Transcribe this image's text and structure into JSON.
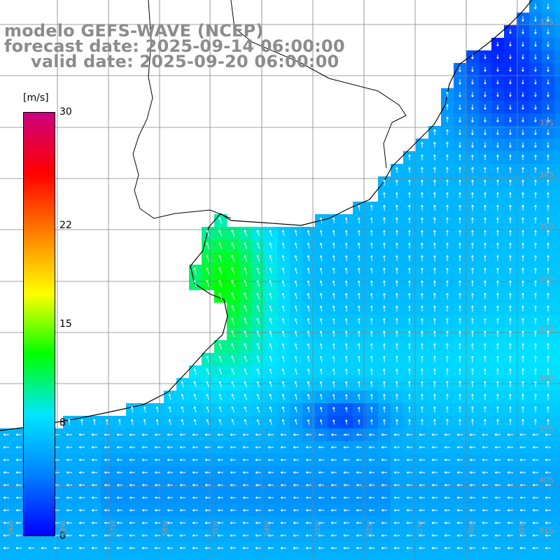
{
  "titles": {
    "line1": "modelo GEFS-WAVE (NCEP)",
    "line2": "forecast date: 2025-09-14 06:00:00",
    "line3": "valid date: 2025-09-20 06:00:00"
  },
  "colorbar": {
    "units": "[m/s]",
    "min": 0,
    "max": 30,
    "ticks": [
      {
        "value": 30,
        "label": "30"
      },
      {
        "value": 22,
        "label": "22"
      },
      {
        "value": 15,
        "label": "15"
      },
      {
        "value": 8,
        "label": "8"
      },
      {
        "value": 0,
        "label": "0"
      }
    ],
    "stops": [
      "#0000ff",
      "#0080ff",
      "#00e6ff",
      "#00ff00",
      "#ffff00",
      "#ff8000",
      "#ff0000",
      "#cc0080"
    ]
  },
  "colors": {
    "coastline": "#000000",
    "grid": "#808080",
    "arrow": "#ffffff",
    "land": "#ffffff",
    "title": "#8c8c8c"
  },
  "lat_labels": [
    "31S",
    "33S",
    "34S",
    "35S",
    "36S",
    "37S",
    "38S",
    "39S",
    "40S",
    "41S"
  ],
  "lon_labels": [
    "59W",
    "58W",
    "57W",
    "56W",
    "55W",
    "54W",
    "53W",
    "52W",
    "51W",
    "50W",
    "49W"
  ],
  "legend_arrows": "wind direction arrows (northward/southward flow)"
}
